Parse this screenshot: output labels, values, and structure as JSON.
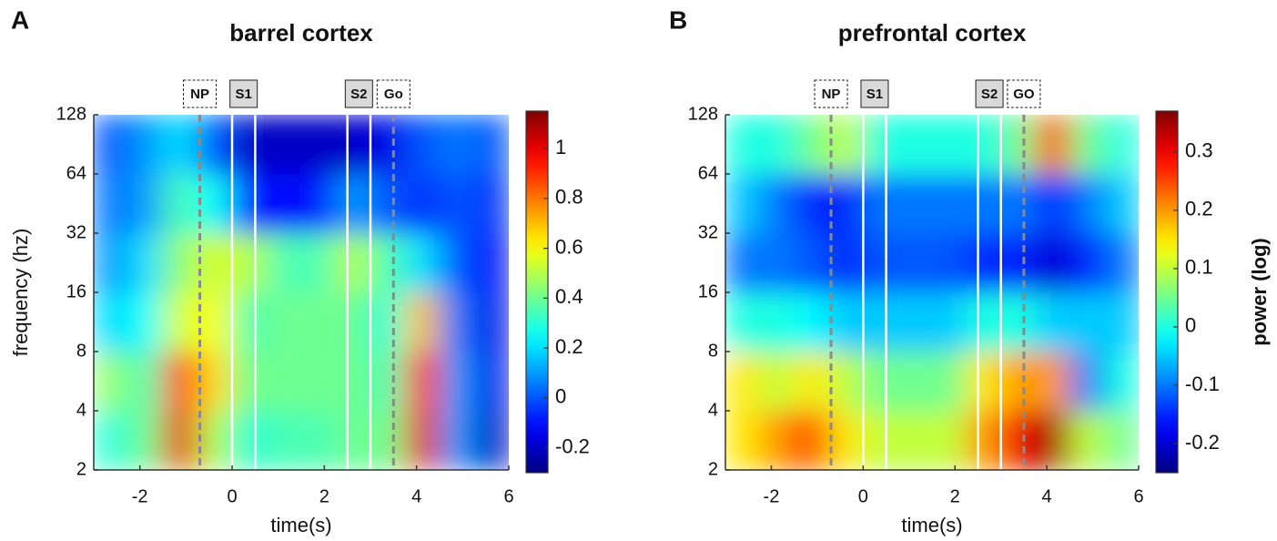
{
  "chart_data": [
    {
      "type": "heatmap",
      "panel_label": "A",
      "title": "barrel cortex",
      "xlabel": "time(s)",
      "ylabel": "frequency (hz)",
      "xlim": [
        -3,
        6
      ],
      "xticks": [
        -2,
        0,
        2,
        4,
        6
      ],
      "ylim": [
        2,
        128
      ],
      "yticks": [
        2,
        4,
        8,
        16,
        32,
        64,
        128
      ],
      "log_y": true,
      "colorbar": {
        "clim": [
          -0.3,
          1.15
        ],
        "ticks": [
          -0.2,
          0,
          0.2,
          0.4,
          0.6,
          0.8,
          1
        ]
      },
      "xbins": [
        -3,
        -2.25,
        -1.5,
        -0.75,
        0,
        0.75,
        1.5,
        2.25,
        3,
        3.75,
        4.5,
        5.25,
        6
      ],
      "ybins": [
        2,
        4,
        8,
        16,
        32,
        64,
        128
      ],
      "z": [
        [
          0.3,
          0.4,
          1.0,
          0.5,
          0.3,
          0.35,
          0.35,
          0.4,
          0.4,
          1.0,
          0.1,
          -0.2
        ],
        [
          0.45,
          0.35,
          0.9,
          0.65,
          0.4,
          0.4,
          0.4,
          0.4,
          0.35,
          0.95,
          0.1,
          -0.15
        ],
        [
          0.2,
          0.25,
          0.55,
          0.6,
          0.35,
          0.4,
          0.4,
          0.4,
          0.3,
          0.7,
          0.05,
          -0.15
        ],
        [
          0.1,
          0.2,
          0.45,
          0.55,
          0.5,
          0.35,
          0.35,
          0.5,
          0.35,
          0.2,
          0.0,
          -0.1
        ],
        [
          0.05,
          0.1,
          0.35,
          0.25,
          -0.1,
          -0.1,
          -0.1,
          0.1,
          0.0,
          -0.05,
          0.0,
          -0.05
        ],
        [
          0.0,
          0.1,
          0.2,
          0.0,
          -0.2,
          -0.2,
          -0.2,
          -0.2,
          -0.15,
          0.0,
          0.05,
          0.0
        ]
      ],
      "events": [
        {
          "label": "NP",
          "x": [
            -0.7
          ],
          "style": "dashed"
        },
        {
          "label": "S1",
          "x": [
            0,
            0.5
          ],
          "style": "solid"
        },
        {
          "label": "S2",
          "x": [
            2.5,
            3
          ],
          "style": "solid"
        },
        {
          "label": "Go",
          "x": [
            3.5
          ],
          "style": "dashed"
        }
      ]
    },
    {
      "type": "heatmap",
      "panel_label": "B",
      "title": "prefrontal cortex",
      "xlabel": "time(s)",
      "xlim": [
        -3,
        6
      ],
      "xticks": [
        -2,
        0,
        2,
        4,
        6
      ],
      "ylim": [
        2,
        128
      ],
      "yticks": [
        2,
        4,
        8,
        16,
        32,
        64,
        128
      ],
      "log_y": true,
      "colorbar": {
        "clim": [
          -0.25,
          0.37
        ],
        "ticks": [
          -0.2,
          -0.1,
          0,
          0.1,
          0.2,
          0.3
        ],
        "label": "power (log)"
      },
      "xbins": [
        -3,
        -2.25,
        -1.5,
        -0.75,
        0,
        0.75,
        1.5,
        2.25,
        3,
        3.75,
        4.5,
        5.25,
        6
      ],
      "ybins": [
        2,
        4,
        8,
        16,
        32,
        64,
        128
      ],
      "z": [
        [
          0.15,
          0.2,
          0.25,
          0.15,
          0.1,
          0.1,
          0.1,
          0.2,
          0.3,
          0.35,
          0.1,
          0.05
        ],
        [
          0.15,
          0.1,
          0.15,
          0.1,
          0.05,
          0.05,
          0.05,
          0.15,
          0.2,
          0.2,
          -0.1,
          0.0
        ],
        [
          0.0,
          0.0,
          -0.02,
          -0.05,
          -0.05,
          -0.05,
          -0.05,
          0.0,
          0.0,
          -0.05,
          -0.05,
          -0.05
        ],
        [
          -0.1,
          -0.1,
          -0.12,
          -0.15,
          -0.12,
          -0.12,
          -0.12,
          -0.15,
          -0.15,
          -0.2,
          -0.15,
          -0.1
        ],
        [
          -0.05,
          -0.1,
          -0.15,
          -0.15,
          -0.1,
          -0.1,
          -0.1,
          -0.1,
          -0.1,
          -0.15,
          -0.1,
          -0.05
        ],
        [
          0.0,
          0.0,
          0.05,
          0.1,
          0.0,
          0.0,
          0.0,
          0.0,
          0.05,
          0.25,
          0.05,
          0.0
        ]
      ],
      "events": [
        {
          "label": "NP",
          "x": [
            -0.7
          ],
          "style": "dashed"
        },
        {
          "label": "S1",
          "x": [
            0,
            0.5
          ],
          "style": "solid"
        },
        {
          "label": "S2",
          "x": [
            2.5,
            3
          ],
          "style": "solid"
        },
        {
          "label": "GO",
          "x": [
            3.5
          ],
          "style": "dashed"
        }
      ]
    }
  ]
}
